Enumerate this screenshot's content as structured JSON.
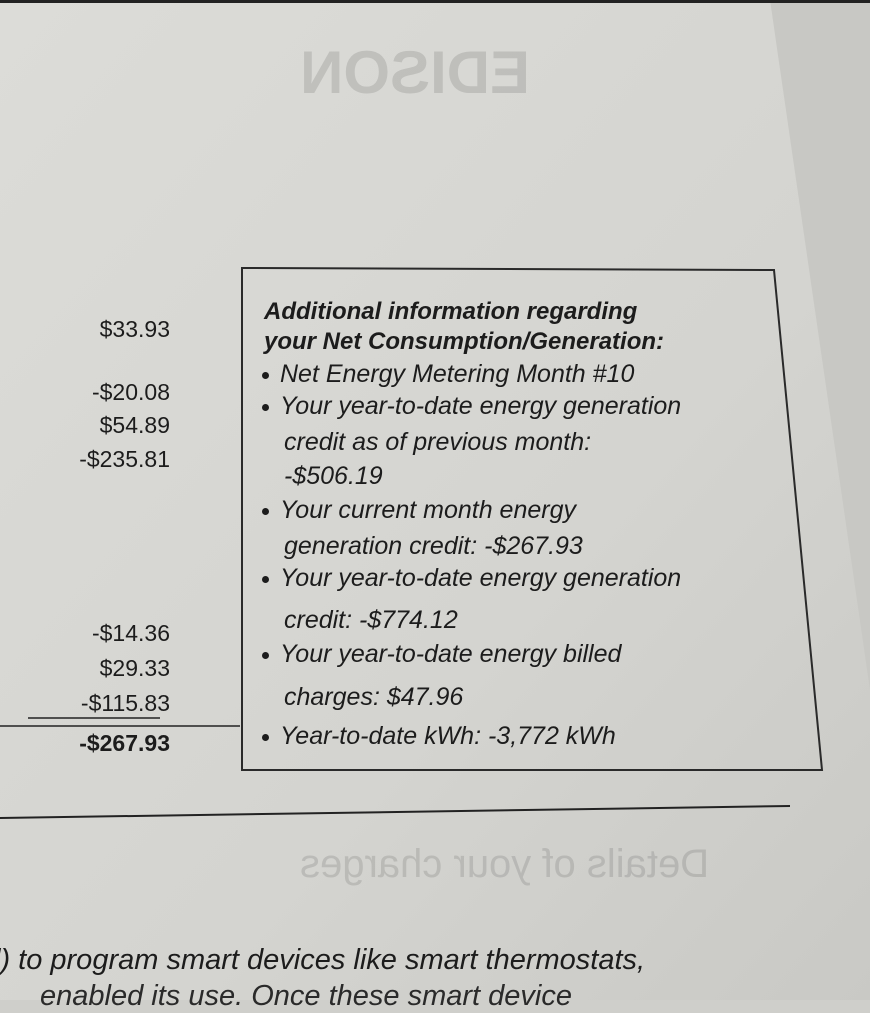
{
  "bleed_through": {
    "logo": "EDISON",
    "heading": "Details of your charges"
  },
  "left_amounts": [
    "$33.93",
    "-$20.08",
    "$54.89",
    "-$235.81",
    "-$14.36",
    "$29.33",
    "-$115.83"
  ],
  "left_total": "-$267.93",
  "info_box": {
    "title_line1": "Additional information regarding",
    "title_line2": "your Net Consumption/Generation:",
    "lines": [
      {
        "bullet": true,
        "text": "Net Energy Metering Month #10"
      },
      {
        "bullet": true,
        "text": "Your year-to-date energy generation"
      },
      {
        "bullet": false,
        "text": "credit as of previous month:"
      },
      {
        "bullet": false,
        "text": "-$506.19"
      },
      {
        "bullet": true,
        "text": "Your current month energy"
      },
      {
        "bullet": false,
        "text": "generation credit: -$267.93"
      },
      {
        "bullet": true,
        "text": "Your year-to-date energy generation"
      },
      {
        "bullet": false,
        "text": "credit: -$774.12"
      },
      {
        "bullet": true,
        "text": "Your year-to-date energy billed"
      },
      {
        "bullet": false,
        "text": "charges: $47.96"
      },
      {
        "bullet": true,
        "text": "Year-to-date kWh: -3,772 kWh"
      }
    ]
  },
  "bottom_text": {
    "line1": "l) to program smart devices like smart thermostats,",
    "line2": "enabled its use. Once these smart device"
  }
}
